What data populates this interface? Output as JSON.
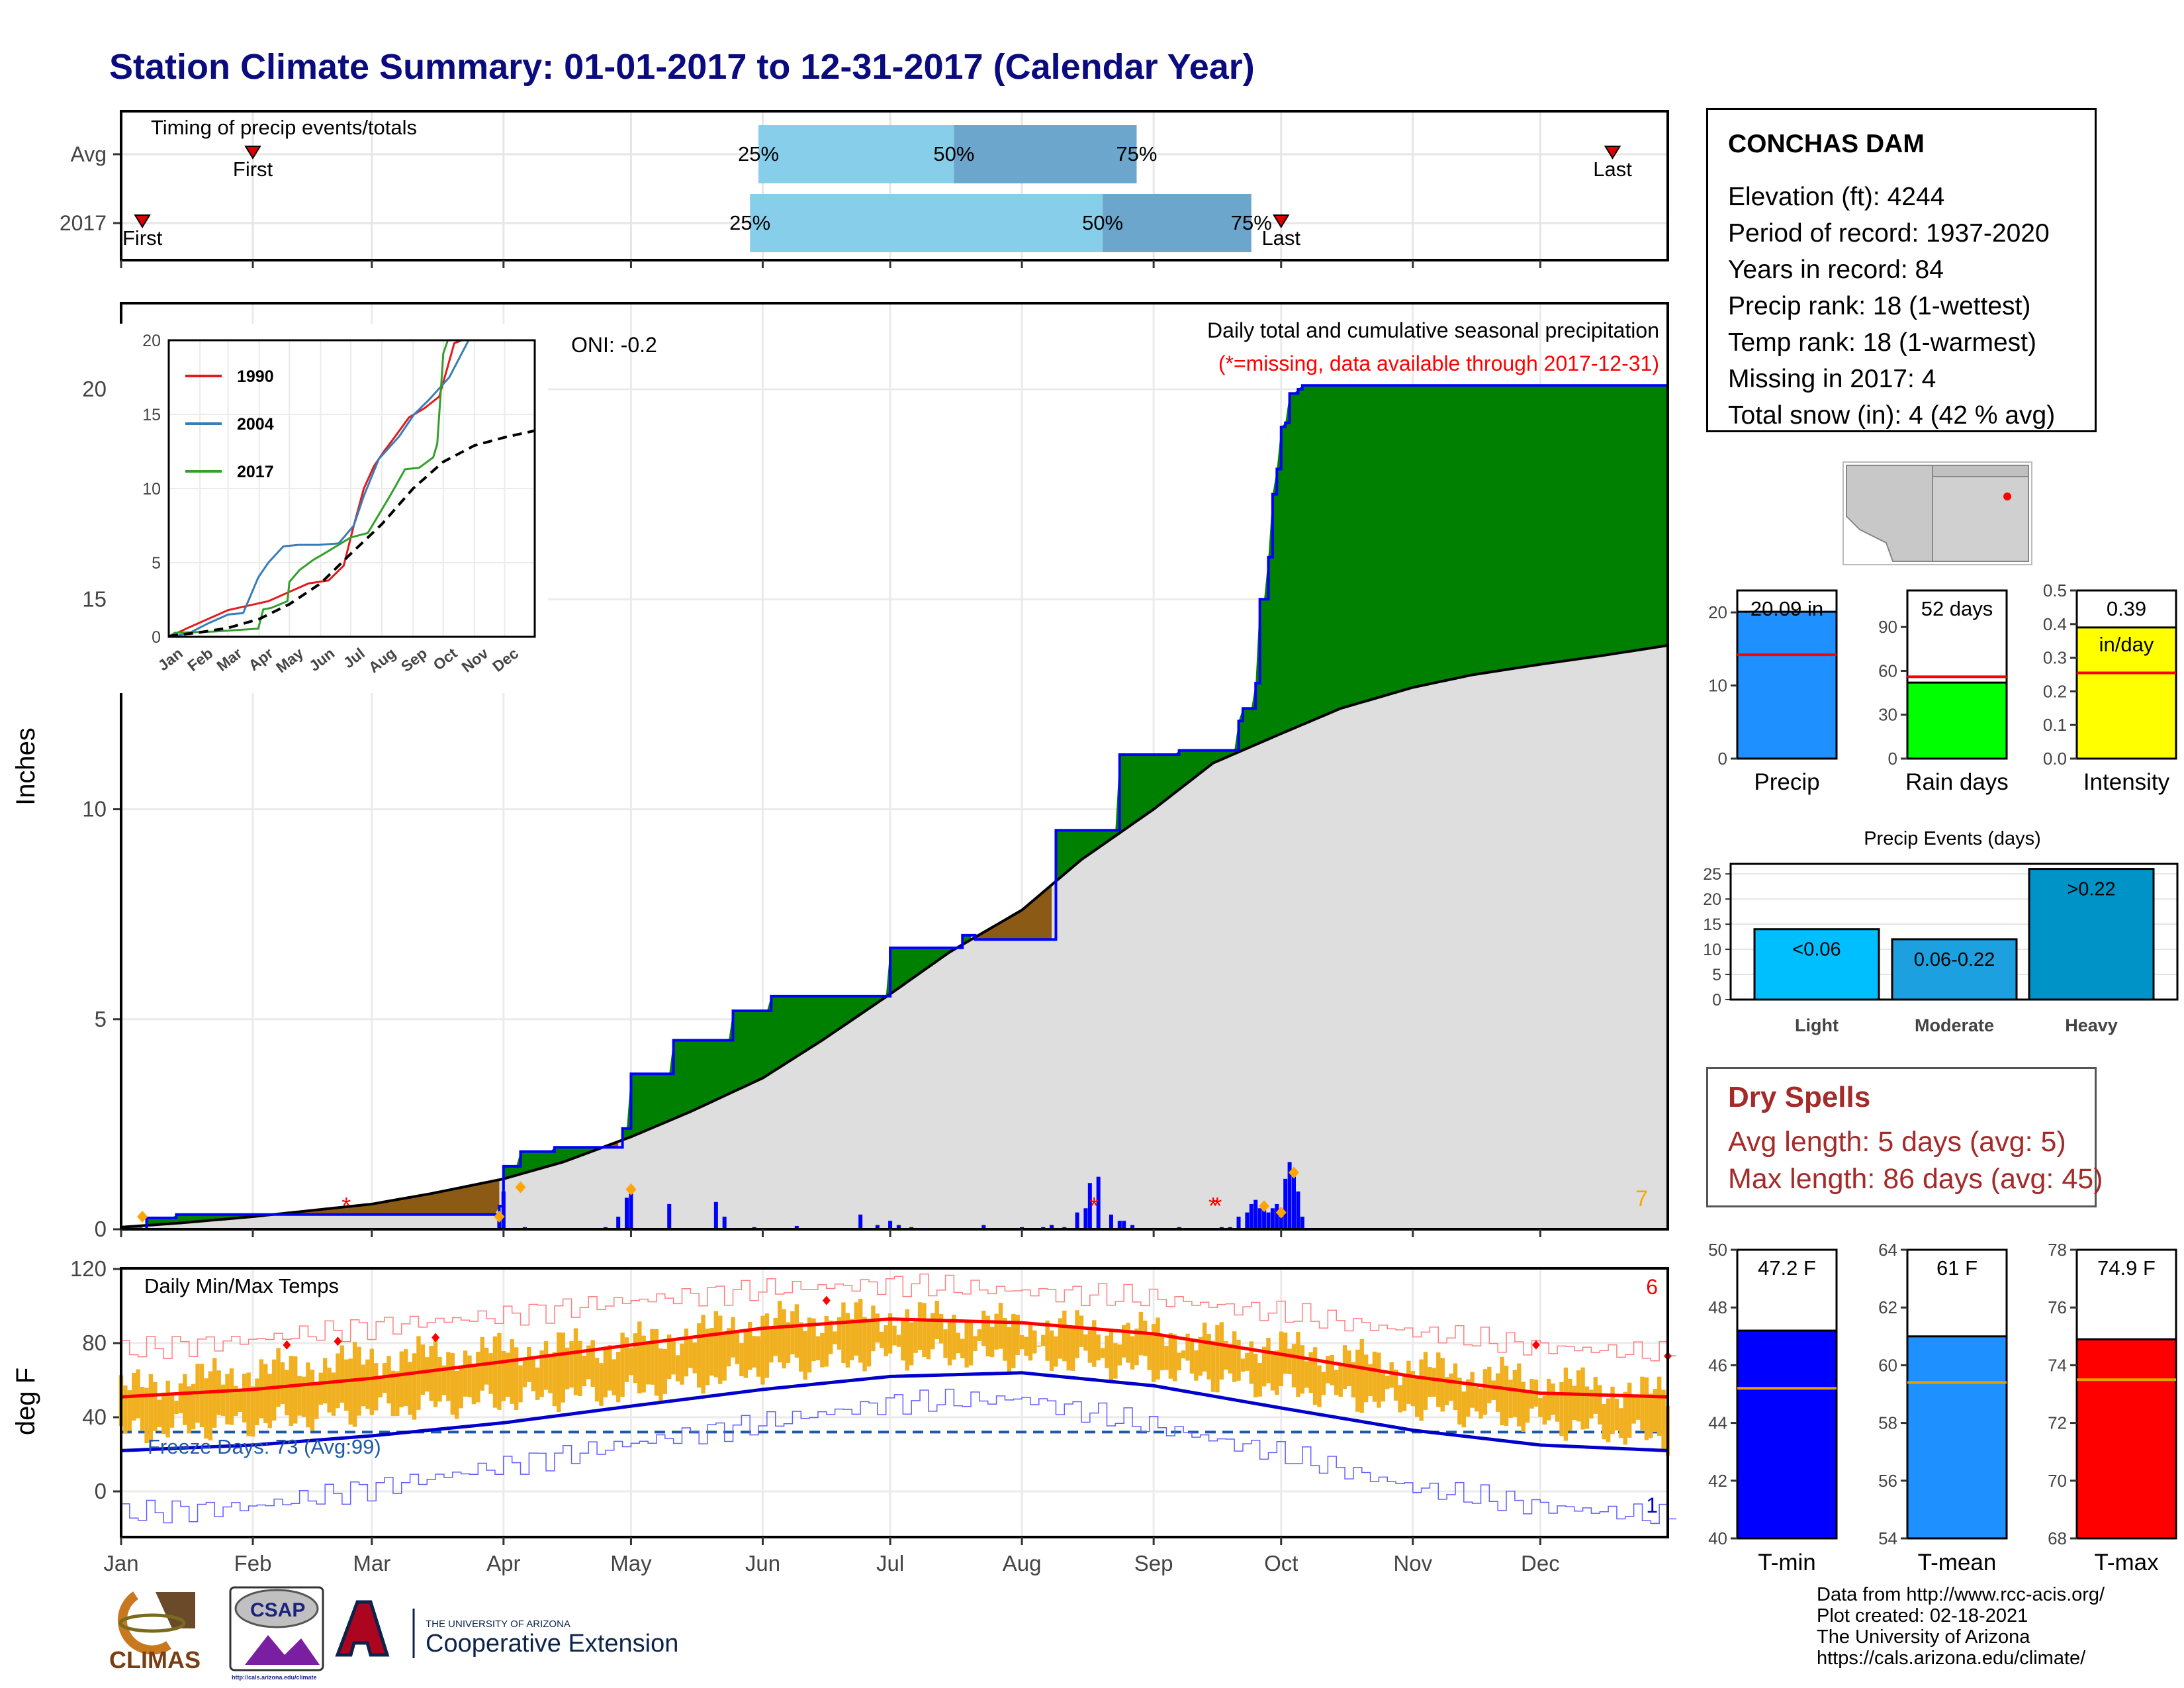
{
  "title": "Station Climate Summary: 01-01-2017 to 12-31-2017 (Calendar Year)",
  "station": {
    "name": "CONCHAS DAM",
    "lines": [
      "Elevation (ft): 4244",
      "Period of record: 1937-2020",
      "Years in record: 84",
      "Precip rank: 18 (1-wettest)",
      "Temp rank: 18 (1-warmest)",
      "Missing in 2017: 4",
      "Total snow (in): 4 (42 % avg)"
    ]
  },
  "dry_spells": {
    "title": "Dry Spells",
    "avg_length": "Avg length: 5 days (avg: 5)",
    "max_length": "Max length: 86 days (avg: 45)"
  },
  "footer": {
    "source": "Data from http://www.rcc-acis.org/",
    "created": "Plot created: 02-18-2021",
    "org": "The University of Arizona",
    "url": "https://cals.arizona.edu/climate/"
  },
  "logos": {
    "climas": "CLIMAS",
    "csap": "CSAP",
    "csap_url": "http://cals.arizona.edu/climate",
    "ua_small": "THE UNIVERSITY OF ARIZONA",
    "ua_big": "Cooperative Extension"
  },
  "months": [
    "Jan",
    "Feb",
    "Mar",
    "Apr",
    "May",
    "Jun",
    "Jul",
    "Aug",
    "Sep",
    "Oct",
    "Nov",
    "Dec"
  ],
  "colors": {
    "above_avg": "#008000",
    "below_avg": "#8b5a14",
    "normal_fill": "#dedede",
    "obs_line": "#0000ff",
    "daily_bar": "#0000ff",
    "temp_bar": "#f0b020",
    "tmax_line": "#ff0000",
    "tmin_line": "#0000cc",
    "title": "#0b0b80",
    "timing_light": "#87ceeb",
    "timing_dark": "#6ca6cd"
  },
  "chart_data": [
    {
      "type": "bar",
      "name": "timing",
      "title": "Timing of precip events/totals",
      "rows": [
        {
          "label": "Avg",
          "first_day": 32,
          "q25_day": 151,
          "q50_day": 197,
          "q75_day": 240,
          "last_day": 352,
          "q25_label": "25%",
          "q50_label": "50%",
          "q75_label": "75%",
          "first_label": "First",
          "last_label": "Last"
        },
        {
          "label": "2017",
          "first_day": 6,
          "q25_day": 149,
          "q50_day": 232,
          "q75_day": 267,
          "last_day": 274,
          "q25_label": "25%",
          "q50_label": "50%",
          "q75_label": "75%",
          "first_label": "First",
          "last_label": "Last"
        }
      ]
    },
    {
      "type": "area",
      "name": "cumulative_precip",
      "title": "Daily total and cumulative seasonal precipitation",
      "subtitle": "(*=missing, data available through 2017-12-31)",
      "oni": "ONI: -0.2",
      "ylabel": "Inches",
      "ylim": [
        0,
        22
      ],
      "yticks": [
        0,
        5,
        10,
        15,
        20
      ],
      "xlim": [
        1,
        365
      ],
      "corner_count": "7",
      "normal": {
        "x": [
          1,
          15,
          32,
          46,
          60,
          74,
          91,
          105,
          121,
          135,
          152,
          166,
          182,
          196,
          213,
          227,
          244,
          258,
          274,
          288,
          305,
          319,
          335,
          349,
          365
        ],
        "y": [
          0.05,
          0.15,
          0.3,
          0.45,
          0.6,
          0.85,
          1.2,
          1.6,
          2.2,
          2.8,
          3.6,
          4.5,
          5.6,
          6.6,
          7.6,
          8.8,
          10.0,
          11.1,
          11.8,
          12.4,
          12.9,
          13.2,
          13.45,
          13.65,
          13.9
        ]
      },
      "observed": {
        "x": [
          1,
          7,
          14,
          45,
          90,
          91,
          95,
          103,
          115,
          119,
          121,
          131,
          142,
          145,
          154,
          162,
          174,
          182,
          189,
          199,
          202,
          220,
          221,
          225,
          235,
          236,
          250,
          257,
          264,
          265,
          268,
          269,
          271,
          272,
          273,
          274,
          275,
          276,
          278,
          279,
          365
        ],
        "y": [
          0.0,
          0.27,
          0.35,
          0.35,
          0.55,
          1.5,
          1.85,
          1.95,
          1.95,
          2.4,
          3.7,
          4.5,
          4.5,
          5.2,
          5.55,
          5.55,
          5.55,
          6.7,
          6.7,
          7.0,
          6.9,
          6.9,
          9.5,
          9.5,
          9.5,
          11.3,
          11.4,
          11.4,
          12.1,
          12.4,
          13.0,
          15.0,
          16.0,
          17.5,
          18.1,
          19.1,
          19.2,
          19.9,
          20.0,
          20.09,
          20.09
        ]
      },
      "daily": {
        "days": [
          90,
          91,
          96,
          115,
          118,
          120,
          121,
          130,
          141,
          143,
          150,
          160,
          175,
          179,
          182,
          184,
          187,
          204,
          213,
          218,
          220,
          223,
          226,
          228,
          229,
          231,
          234,
          236,
          237,
          239,
          250,
          260,
          262,
          264,
          266,
          267,
          268,
          269,
          270,
          271,
          272,
          273,
          274,
          275,
          276,
          277,
          278,
          279
        ],
        "values": [
          0.2,
          0.9,
          0.05,
          0.05,
          0.3,
          0.75,
          0.85,
          0.6,
          0.65,
          0.3,
          0.05,
          0.08,
          0.35,
          0.1,
          0.2,
          0.1,
          0.05,
          0.1,
          0.05,
          0.05,
          0.1,
          0.05,
          0.4,
          0.5,
          1.1,
          1.25,
          0.35,
          0.2,
          0.2,
          0.1,
          0.05,
          0.05,
          0.05,
          0.3,
          0.4,
          0.6,
          0.7,
          0.5,
          0.45,
          0.4,
          0.5,
          0.6,
          0.3,
          1.2,
          1.6,
          1.25,
          0.9,
          0.3
        ]
      },
      "missing_days": [
        54,
        230,
        258,
        259
      ],
      "snow_days": [
        6,
        90,
        95,
        121,
        270,
        274,
        277
      ],
      "inset": {
        "type": "line",
        "ylim": [
          0,
          20
        ],
        "yticks": [
          0,
          5,
          10,
          15,
          20
        ],
        "series": [
          {
            "name": "1990",
            "color": "#e31a1c",
            "x": [
              1,
              20,
              40,
              60,
              80,
              100,
              120,
              140,
              160,
              175,
              185,
              195,
              205,
              215,
              225,
              240,
              255,
              270,
              285,
              300,
              320,
              340,
              365
            ],
            "y": [
              0.0,
              0.6,
              1.2,
              1.8,
              2.1,
              2.4,
              3.0,
              3.6,
              3.8,
              4.8,
              7.5,
              10.0,
              11.5,
              12.5,
              13.4,
              14.8,
              15.4,
              16.2,
              19.8,
              20.2,
              20.4,
              20.6,
              20.8
            ]
          },
          {
            "name": "2004",
            "color": "#377eb8",
            "x": [
              1,
              20,
              40,
              60,
              75,
              90,
              100,
              115,
              130,
              150,
              170,
              185,
              195,
              210,
              230,
              245,
              260,
              280,
              300,
              320,
              340,
              365
            ],
            "y": [
              0.0,
              0.2,
              0.9,
              1.5,
              1.6,
              4.0,
              5.0,
              6.1,
              6.2,
              6.2,
              6.3,
              7.5,
              9.5,
              12.0,
              13.5,
              15.0,
              16.0,
              17.5,
              20.1,
              20.3,
              20.6,
              20.9
            ]
          },
          {
            "name": "2017",
            "color": "#33a02c",
            "x": [
              1,
              7,
              45,
              90,
              95,
              103,
              119,
              121,
              131,
              145,
              154,
              182,
              199,
              221,
              236,
              250,
              264,
              268,
              271,
              274,
              279,
              285,
              365
            ],
            "y": [
              0.0,
              0.27,
              0.35,
              0.55,
              1.85,
              1.95,
              2.4,
              3.7,
              4.5,
              5.2,
              5.55,
              6.7,
              7.0,
              9.5,
              11.3,
              11.4,
              12.1,
              13.0,
              16.0,
              19.1,
              20.09,
              20.09,
              20.09
            ]
          },
          {
            "name": "",
            "color": "#000000",
            "dashed": true,
            "x": [
              1,
              32,
              60,
              91,
              121,
              152,
              182,
              213,
              244,
              274,
              305,
              335,
              365
            ],
            "y": [
              0.05,
              0.3,
              0.6,
              1.2,
              2.2,
              3.6,
              5.6,
              7.6,
              10.0,
              11.8,
              12.9,
              13.45,
              13.9
            ]
          }
        ]
      }
    },
    {
      "type": "bar",
      "name": "temperature",
      "title": "Daily Min/Max Temps",
      "ylabel": "deg F",
      "ylim": [
        -22,
        120
      ],
      "yticks": [
        0,
        40,
        80,
        120
      ],
      "freeze_label": "Freeze Days: 73 (Avg:99)",
      "freeze_line": 32,
      "corner_top": "6",
      "corner_bottom": "1",
      "normal_tmax": {
        "x": [
          1,
          32,
          60,
          91,
          121,
          152,
          182,
          213,
          244,
          274,
          305,
          335,
          365
        ],
        "y": [
          51,
          55,
          61,
          70,
          79,
          88,
          93,
          91,
          85,
          74,
          62,
          53,
          51
        ]
      },
      "normal_tmin": {
        "x": [
          1,
          32,
          60,
          91,
          121,
          152,
          182,
          213,
          244,
          274,
          305,
          335,
          365
        ],
        "y": [
          22,
          25,
          30,
          37,
          46,
          55,
          62,
          64,
          57,
          45,
          33,
          25,
          22
        ]
      },
      "record_max": {
        "x": [
          1,
          32,
          60,
          91,
          121,
          152,
          182,
          213,
          244,
          274,
          305,
          335,
          365
        ],
        "y": [
          76,
          82,
          89,
          95,
          103,
          109,
          112,
          108,
          104,
          96,
          86,
          78,
          74
        ]
      },
      "record_min": {
        "x": [
          1,
          32,
          60,
          91,
          121,
          152,
          182,
          213,
          244,
          274,
          305,
          335,
          365
        ],
        "y": [
          -12,
          -8,
          2,
          14,
          26,
          37,
          48,
          50,
          35,
          20,
          2,
          -8,
          -14
        ]
      },
      "obs_max": {
        "x": [
          1,
          32,
          60,
          91,
          121,
          152,
          182,
          213,
          244,
          274,
          305,
          335,
          365
        ],
        "y": [
          55,
          65,
          72,
          76,
          80,
          92,
          95,
          90,
          86,
          78,
          67,
          60,
          52
        ]
      },
      "obs_min": {
        "x": [
          1,
          32,
          60,
          91,
          121,
          152,
          182,
          213,
          244,
          274,
          305,
          335,
          365
        ],
        "y": [
          22,
          27,
          34,
          40,
          44,
          56,
          64,
          63,
          56,
          46,
          36,
          28,
          18
        ]
      },
      "record_marks": {
        "x": [
          40,
          52,
          75,
          167,
          334,
          365
        ],
        "y": [
          79,
          81,
          83,
          103,
          79,
          73
        ]
      }
    },
    {
      "type": "bar",
      "name": "precip_summary",
      "panels": [
        {
          "label": "Precip",
          "value": 20.09,
          "value_text": "20.09 in",
          "avg": 14.2,
          "ylim": [
            0,
            23
          ],
          "yticks": [
            0,
            10,
            20
          ],
          "color": "#1e90ff"
        },
        {
          "label": "Rain days",
          "value": 52,
          "value_text": "52 days",
          "avg": 56,
          "ylim": [
            0,
            115
          ],
          "yticks": [
            0,
            30,
            60,
            90
          ],
          "color": "#00ff00"
        },
        {
          "label": "Intensity",
          "value": 0.39,
          "value_text": "0.39",
          "value_text2": "in/day",
          "avg": 0.255,
          "ylim": [
            0,
            0.5
          ],
          "yticks": [
            0.0,
            0.1,
            0.2,
            0.3,
            0.4,
            0.5
          ],
          "color": "#ffff00"
        }
      ]
    },
    {
      "type": "bar",
      "name": "precip_events",
      "title": "Precip Events (days)",
      "categories": [
        "Light",
        "Moderate",
        "Heavy"
      ],
      "values": [
        14,
        12,
        26
      ],
      "bar_labels": [
        "<0.06",
        "0.06-0.22",
        ">0.22"
      ],
      "colors": [
        "#00bfff",
        "#1ca0e0",
        "#0093c8"
      ],
      "ylim": [
        0,
        27
      ],
      "yticks": [
        0,
        5,
        10,
        15,
        20,
        25
      ]
    },
    {
      "type": "bar",
      "name": "temp_summary",
      "panels": [
        {
          "label": "T-min",
          "value": 47.2,
          "value_text": "47.2 F",
          "avg": 45.2,
          "ylim": [
            40,
            50
          ],
          "yticks": [
            40,
            42,
            44,
            46,
            48,
            50
          ],
          "color": "#0000ff"
        },
        {
          "label": "T-mean",
          "value": 61,
          "value_text": "61 F",
          "avg": 59.4,
          "ylim": [
            54,
            64
          ],
          "yticks": [
            54,
            56,
            58,
            60,
            62,
            64
          ],
          "color": "#1e90ff"
        },
        {
          "label": "T-max",
          "value": 74.9,
          "value_text": "74.9 F",
          "avg": 73.5,
          "ylim": [
            68,
            78
          ],
          "yticks": [
            68,
            70,
            72,
            74,
            76,
            78
          ],
          "color": "#ff0000"
        }
      ]
    }
  ]
}
